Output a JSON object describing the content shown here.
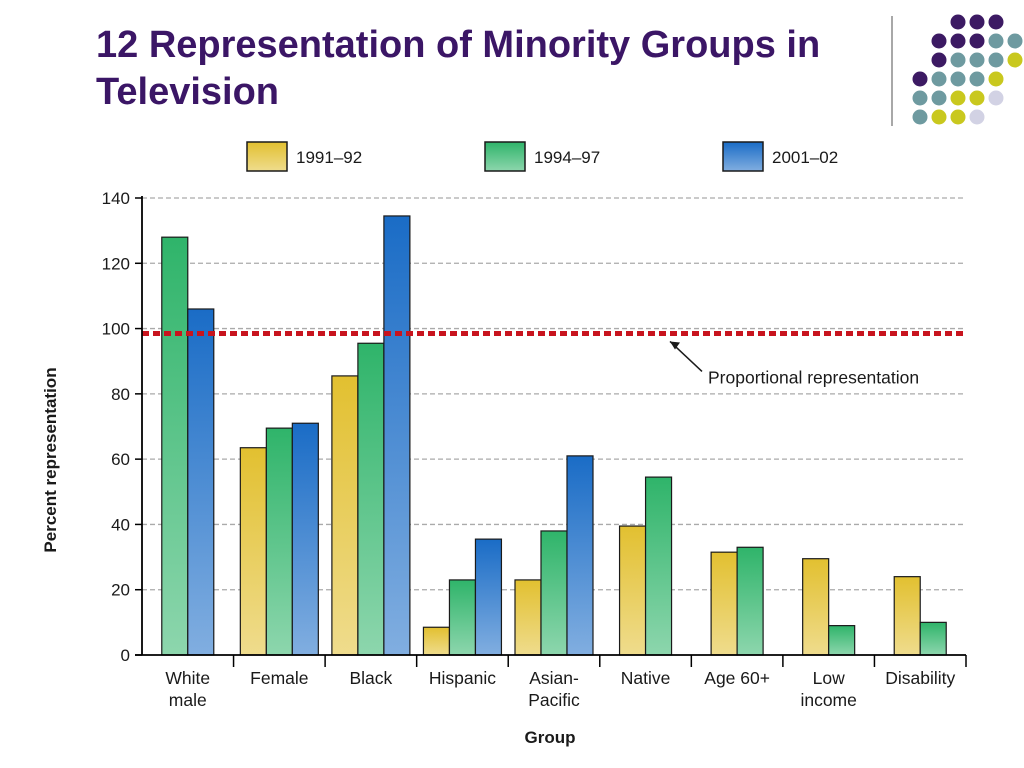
{
  "slide": {
    "title_line1": "12 Representation of Minority Groups in",
    "title_line2": "Television"
  },
  "colors": {
    "title": "#3b1666",
    "dot_purple": "#3c1a63",
    "dot_teal": "#6e9aa0",
    "dot_yellow": "#c9c81e",
    "dot_lavender": "#d2d2e4"
  },
  "chart_data": {
    "type": "bar",
    "title": "",
    "xlabel": "Group",
    "ylabel": "Percent representation",
    "ylim": [
      0,
      140
    ],
    "yticks": [
      0,
      20,
      40,
      60,
      80,
      100,
      120,
      140
    ],
    "grid": true,
    "legend_position": "top",
    "categories": [
      [
        "White",
        "male"
      ],
      [
        "Female"
      ],
      [
        "Black"
      ],
      [
        "Hispanic"
      ],
      [
        "Asian-",
        "Pacific"
      ],
      [
        "Native"
      ],
      [
        "Age 60+"
      ],
      [
        "Low",
        "income"
      ],
      [
        "Disability"
      ]
    ],
    "series": [
      {
        "name": "1991–92",
        "color": "#e2c030",
        "values": [
          null,
          63.5,
          85.5,
          8.5,
          23,
          39.5,
          31.5,
          29.5,
          24
        ]
      },
      {
        "name": "1994–97",
        "color": "#2fb46a",
        "values": [
          128,
          69.5,
          95.5,
          23,
          38,
          54.5,
          33,
          9,
          10
        ]
      },
      {
        "name": "2001–02",
        "color": "#1a6cc6",
        "values": [
          106,
          71,
          134.5,
          35.5,
          61,
          null,
          null,
          null,
          null
        ]
      }
    ],
    "reference_line": {
      "value": 98.5,
      "label": "Proportional representation",
      "color": "#c8141e"
    }
  }
}
